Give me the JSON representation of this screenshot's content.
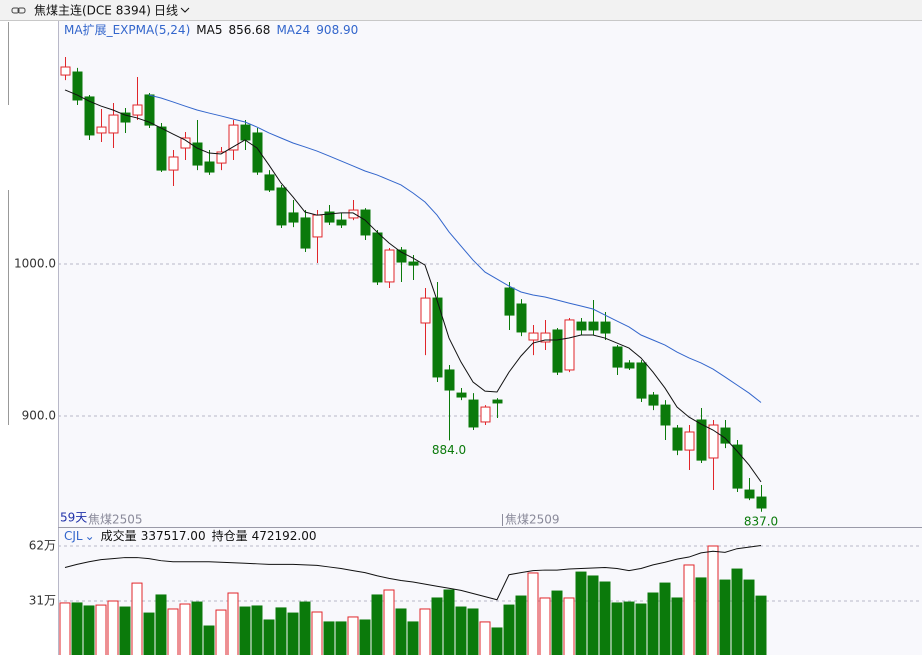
{
  "chart_data": [
    {
      "type": "candlestick",
      "title": "焦煤主连(DCE 8394)",
      "period": "日线",
      "indicator": "MA扩展_EXPMA(5,24)",
      "days_label": "59天",
      "contracts": [
        "焦煤2505",
        "焦煤2509"
      ],
      "up_color": "#e0262a",
      "down_color": "#0b7a0b",
      "open": [
        1124.3,
        1126.3,
        1109.9,
        1086.2,
        1086.2,
        1099.3,
        1098,
        1111.2,
        1090.1,
        1061.8,
        1076.3,
        1079.6,
        1067.1,
        1066.4,
        1075,
        1091.4,
        1086.2,
        1058.6,
        1050,
        1033.6,
        1030.3,
        1017.8,
        1034.2,
        1028.9,
        1030.3,
        1035.5,
        1020.4,
        988.2,
        1009.2,
        1001.3,
        961.2,
        977.6,
        930.3,
        915.1,
        910.5,
        896.1,
        910.5,
        984.2,
        973.7,
        950,
        948.7,
        956.6,
        930.3,
        961.8,
        961.8,
        961.8,
        945.4,
        934.9,
        934.9,
        913.8,
        907.2,
        892.1,
        877.6,
        897.4,
        872.4,
        892.1,
        880.9,
        851.3,
        846.7
      ],
      "high": [
        1136.2,
        1129,
        1111.2,
        1102,
        1105.9,
        1102.6,
        1123,
        1112.5,
        1092.8,
        1075,
        1086.8,
        1094.7,
        1075,
        1077,
        1094.7,
        1094.7,
        1089.5,
        1061.8,
        1052,
        1042.1,
        1035.5,
        1035.5,
        1038.8,
        1033.6,
        1042.1,
        1036.8,
        1022.4,
        1010.5,
        1011.2,
        1005.9,
        984.2,
        988.2,
        933.6,
        918.4,
        915.1,
        907.2,
        911.8,
        988.2,
        976.9,
        959.9,
        963.2,
        957.9,
        964.5,
        964.5,
        976.3,
        968.4,
        946.7,
        936.8,
        936.8,
        915.8,
        910.5,
        894.1,
        894.1,
        905.3,
        897.4,
        897.4,
        884.2,
        859.2,
        854.6
      ],
      "low": [
        1121,
        1104.6,
        1081.6,
        1080.3,
        1076.3,
        1086.2,
        1094.7,
        1089.5,
        1060.5,
        1051.3,
        1068.4,
        1061.8,
        1058.6,
        1061.8,
        1068.4,
        1075,
        1058.6,
        1047.4,
        1023.7,
        1024.3,
        1007.9,
        1000.7,
        1025.7,
        1023.7,
        1028.9,
        1015.8,
        986.2,
        984.2,
        988.2,
        989.5,
        940.1,
        922.4,
        884,
        910.5,
        890.8,
        894.1,
        898.7,
        956.6,
        952.6,
        940.1,
        943.4,
        927,
        928.9,
        953.3,
        953.3,
        950,
        927,
        930.3,
        909.2,
        903.9,
        884.2,
        874.3,
        864.5,
        869.1,
        851.3,
        878.9,
        850,
        844.7,
        837
      ],
      "close": [
        1129.6,
        1107.9,
        1084.9,
        1090.1,
        1098,
        1093.4,
        1104.6,
        1091.4,
        1061.8,
        1070.4,
        1082.9,
        1065.1,
        1060.5,
        1073.7,
        1091.4,
        1081.6,
        1060.5,
        1048.7,
        1025.7,
        1027.6,
        1010.5,
        1032.2,
        1027.6,
        1025.7,
        1035.5,
        1019.1,
        988.2,
        1009.2,
        1001.3,
        999.3,
        977.6,
        925.7,
        917.1,
        912.5,
        892.8,
        905.9,
        908.6,
        966.4,
        955.3,
        954.6,
        954.6,
        928.9,
        963.2,
        956.6,
        956.6,
        954.6,
        932.2,
        931.6,
        911.8,
        907.2,
        894.1,
        877.6,
        889.5,
        871,
        894.1,
        882.2,
        852.6,
        846.1,
        839.5
      ],
      "series": [
        {
          "name": "MA5",
          "color": "#111111",
          "legend_value": {
            "value": 856.68,
            "label": "856.68"
          },
          "values": [
            1114.5,
            1111.2,
            1107.2,
            1103.9,
            1101.3,
            1098,
            1096.1,
            1093.4,
            1089.5,
            1085.5,
            1081.6,
            1076.3,
            1073,
            1072.4,
            1077,
            1081.6,
            1076.3,
            1065.1,
            1053.3,
            1044.1,
            1034.2,
            1032.2,
            1032.9,
            1033.6,
            1033.6,
            1028.9,
            1021.1,
            1013.8,
            1007.9,
            1003.9,
            999.3,
            976.3,
            951.3,
            935.5,
            922.4,
            916.4,
            915.8,
            928.9,
            939.5,
            948,
            950,
            950,
            951.3,
            953.3,
            953.3,
            951.3,
            948,
            944.7,
            938.2,
            928.9,
            918.4,
            905.9,
            899.3,
            894.7,
            890.8,
            885.5,
            877,
            867.8,
            856.68
          ]
        },
        {
          "name": "MA24",
          "color": "#3366cc",
          "legend_value": {
            "value": 908.9,
            "label": "908.90"
          },
          "values": [
            null,
            null,
            null,
            null,
            null,
            null,
            null,
            1111.2,
            1109.2,
            1106.6,
            1103.9,
            1101.3,
            1099.3,
            1097.4,
            1095.4,
            1093.4,
            1090.1,
            1086.2,
            1082.9,
            1079.6,
            1077,
            1074.3,
            1071.1,
            1067.8,
            1064.5,
            1061.2,
            1058.6,
            1055.3,
            1052,
            1046.7,
            1040.8,
            1032.2,
            1021.1,
            1011.8,
            1002.6,
            994.7,
            990.1,
            985.5,
            981.6,
            979.6,
            978.3,
            976.3,
            974.3,
            972.4,
            970.4,
            966.4,
            962.5,
            958.6,
            953.3,
            950,
            946.7,
            942.1,
            938.2,
            934.9,
            930.9,
            925.7,
            920.4,
            915.1,
            908.9
          ]
        }
      ],
      "annotations": [
        {
          "value": 884,
          "label": "884.0"
        },
        {
          "value": 837,
          "label": "837.0"
        }
      ],
      "ylim": [
        827,
        1159.2
      ],
      "yticks": [
        {
          "value": 1000,
          "label": "1000.0"
        },
        {
          "value": 900,
          "label": "900.0"
        }
      ],
      "grid": true
    },
    {
      "type": "bar",
      "title": "CJL",
      "series": [
        {
          "name": "成交量",
          "legend_value": {
            "value": 337517,
            "label": "337517.00"
          },
          "values": [
            299000,
            299000,
            282000,
            287000,
            310000,
            276000,
            411000,
            242000,
            344000,
            265000,
            293000,
            304000,
            169000,
            259000,
            355000,
            276000,
            282000,
            203000,
            271000,
            242000,
            304000,
            248000,
            192000,
            192000,
            220000,
            203000,
            344000,
            372000,
            265000,
            192000,
            265000,
            327000,
            372000,
            276000,
            265000,
            192000,
            158000,
            287000,
            338000,
            468000,
            327000,
            366000,
            327000,
            473000,
            451000,
            417000,
            299000,
            304000,
            293000,
            355000,
            411000,
            327000,
            513000,
            440000,
            620000,
            428000,
            490000,
            428000,
            337517
          ]
        },
        {
          "name": "持仓量",
          "axis": "y2",
          "color": "#111111",
          "legend_value": {
            "value": 472192,
            "label": "472192.00"
          },
          "values": [
            430000,
            436000,
            441000,
            445000,
            447000,
            449000,
            449000,
            447000,
            443000,
            441000,
            441000,
            441000,
            441000,
            440000,
            439000,
            438000,
            437000,
            436000,
            436000,
            436000,
            435000,
            434000,
            431000,
            428000,
            424000,
            420000,
            414000,
            409000,
            405000,
            402000,
            398000,
            394000,
            390000,
            386000,
            380000,
            374000,
            368000,
            416000,
            420000,
            424000,
            425000,
            425000,
            427000,
            428000,
            429000,
            430000,
            428000,
            424000,
            428000,
            435000,
            440000,
            446000,
            450000,
            458000,
            461000,
            459000,
            466000,
            469000,
            472192
          ]
        }
      ],
      "ylim": [
        0,
        704500
      ],
      "yticks": [
        {
          "value": 620000,
          "label": "62万"
        },
        {
          "value": 310000,
          "label": "31万"
        }
      ],
      "y2lim": [
        260000,
        500000
      ],
      "grid": true
    }
  ]
}
